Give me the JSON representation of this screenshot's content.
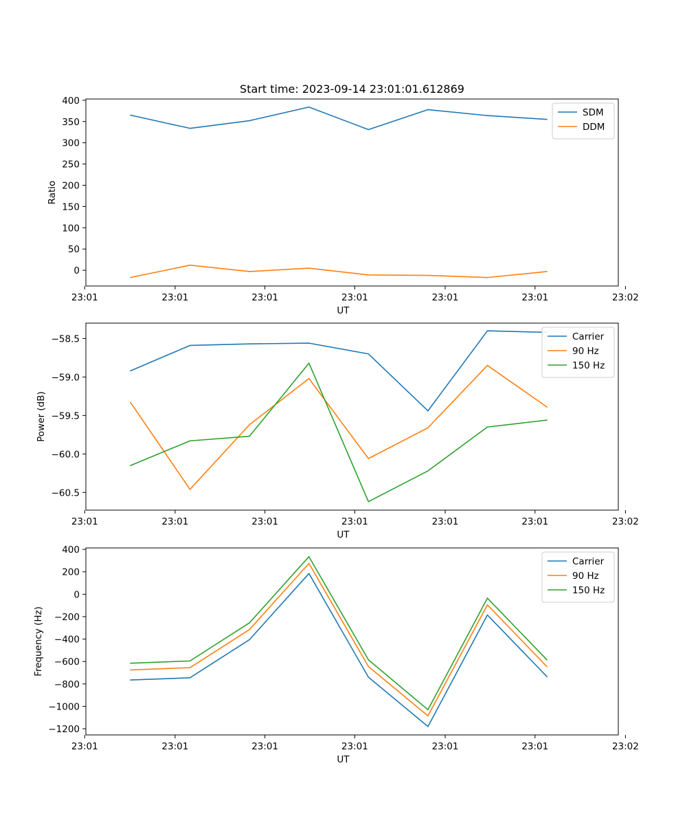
{
  "chart_data": [
    {
      "type": "line",
      "title": "Start time: 2023-09-14 23:01:01.612869",
      "xlabel": "UT",
      "ylabel": "Ratio",
      "x": [
        1,
        2,
        3,
        4,
        5,
        6,
        7,
        8
      ],
      "xlim": [
        0.25,
        9.2
      ],
      "xticks": [
        {
          "value": 0.23,
          "label": "23:01"
        },
        {
          "value": 1.75,
          "label": "23:01"
        },
        {
          "value": 3.26,
          "label": "23:01"
        },
        {
          "value": 4.77,
          "label": "23:01"
        },
        {
          "value": 6.29,
          "label": "23:01"
        },
        {
          "value": 7.8,
          "label": "23:01"
        },
        {
          "value": 9.32,
          "label": "23:02"
        }
      ],
      "ylim": [
        -37,
        403
      ],
      "yticks": [
        {
          "value": 400,
          "label": "400"
        },
        {
          "value": 350,
          "label": "350"
        },
        {
          "value": 300,
          "label": "300"
        },
        {
          "value": 250,
          "label": "250"
        },
        {
          "value": 200,
          "label": "200"
        },
        {
          "value": 150,
          "label": "150"
        },
        {
          "value": 100,
          "label": "100"
        },
        {
          "value": 50,
          "label": "50"
        },
        {
          "value": 0,
          "label": "0"
        }
      ],
      "legend_position": "top-right",
      "series": [
        {
          "name": "SDM",
          "color": "#1f77b4",
          "values": [
            365,
            334,
            352,
            384,
            331,
            378,
            364,
            355
          ]
        },
        {
          "name": "DDM",
          "color": "#ff7f0e",
          "values": [
            -17,
            12,
            -3,
            5,
            -11,
            -12,
            -17,
            -3
          ]
        }
      ]
    },
    {
      "type": "line",
      "title": "",
      "xlabel": "UT",
      "ylabel": "Power (dB)",
      "x": [
        1,
        2,
        3,
        4,
        5,
        6,
        7,
        8
      ],
      "xlim": [
        0.25,
        9.2
      ],
      "xticks": [
        {
          "value": 0.23,
          "label": "23:01"
        },
        {
          "value": 1.75,
          "label": "23:01"
        },
        {
          "value": 3.26,
          "label": "23:01"
        },
        {
          "value": 4.77,
          "label": "23:01"
        },
        {
          "value": 6.29,
          "label": "23:01"
        },
        {
          "value": 7.8,
          "label": "23:01"
        },
        {
          "value": 9.32,
          "label": "23:02"
        }
      ],
      "ylim": [
        -60.73,
        -58.3
      ],
      "yticks": [
        {
          "value": -58.5,
          "label": "−58.5"
        },
        {
          "value": -59.0,
          "label": "−59.0"
        },
        {
          "value": -59.5,
          "label": "−59.5"
        },
        {
          "value": -60.0,
          "label": "−60.0"
        },
        {
          "value": -60.5,
          "label": "−60.5"
        }
      ],
      "legend_position": "top-right",
      "series": [
        {
          "name": "Carrier",
          "color": "#1f77b4",
          "values": [
            -58.92,
            -58.59,
            -58.57,
            -58.56,
            -58.7,
            -59.44,
            -58.4,
            -58.42
          ]
        },
        {
          "name": "90 Hz",
          "color": "#ff7f0e",
          "values": [
            -59.33,
            -60.46,
            -59.62,
            -59.02,
            -60.06,
            -59.66,
            -58.85,
            -59.39
          ]
        },
        {
          "name": "150 Hz",
          "color": "#2ca02c",
          "values": [
            -60.15,
            -59.83,
            -59.77,
            -58.82,
            -60.62,
            -60.22,
            -59.65,
            -59.56
          ]
        }
      ]
    },
    {
      "type": "line",
      "title": "",
      "xlabel": "UT",
      "ylabel": "Frequency (Hz)",
      "x": [
        1,
        2,
        3,
        4,
        5,
        6,
        7,
        8
      ],
      "xlim": [
        0.25,
        9.2
      ],
      "xticks": [
        {
          "value": 0.23,
          "label": "23:01"
        },
        {
          "value": 1.75,
          "label": "23:01"
        },
        {
          "value": 3.26,
          "label": "23:01"
        },
        {
          "value": 4.77,
          "label": "23:01"
        },
        {
          "value": 6.29,
          "label": "23:01"
        },
        {
          "value": 7.8,
          "label": "23:01"
        },
        {
          "value": 9.32,
          "label": "23:02"
        }
      ],
      "ylim": [
        -1255,
        413
      ],
      "yticks": [
        {
          "value": 400,
          "label": "400"
        },
        {
          "value": 200,
          "label": "200"
        },
        {
          "value": 0,
          "label": "0"
        },
        {
          "value": -200,
          "label": "−200"
        },
        {
          "value": -400,
          "label": "−400"
        },
        {
          "value": -600,
          "label": "−600"
        },
        {
          "value": -800,
          "label": "−800"
        },
        {
          "value": -1000,
          "label": "−1000"
        },
        {
          "value": -1200,
          "label": "−1200"
        }
      ],
      "legend_position": "top-right",
      "series": [
        {
          "name": "Carrier",
          "color": "#1f77b4",
          "values": [
            -765,
            -745,
            -405,
            185,
            -740,
            -1180,
            -185,
            -735
          ]
        },
        {
          "name": "90 Hz",
          "color": "#ff7f0e",
          "values": [
            -675,
            -655,
            -315,
            275,
            -645,
            -1085,
            -95,
            -645
          ]
        },
        {
          "name": "150 Hz",
          "color": "#2ca02c",
          "values": [
            -615,
            -595,
            -255,
            335,
            -585,
            -1030,
            -35,
            -585
          ]
        }
      ]
    }
  ]
}
